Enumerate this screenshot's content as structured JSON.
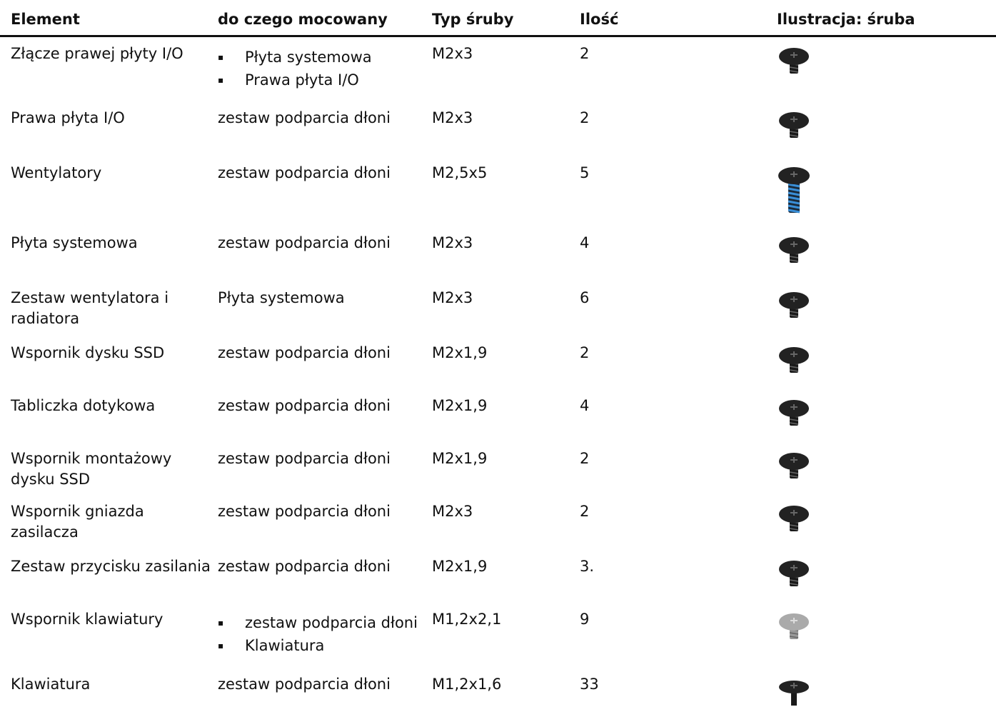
{
  "table": {
    "header": [
      "Element",
      "do czego mocowany",
      "Typ śruby",
      "Ilość",
      "Ilustracja: śruba"
    ],
    "rows": [
      [
        "Złącze prawej płyty I/O",
        [
          "Płyta systemowa",
          "Prawa płyta I/O"
        ],
        "M2x3",
        "2"
      ],
      [
        "Prawa płyta I/O",
        "zestaw podparcia dłoni",
        "M2x3",
        "2"
      ],
      [
        "Wentylatory",
        "zestaw podparcia dłoni",
        "M2,5x5",
        "5"
      ],
      [
        "Płyta systemowa",
        "zestaw podparcia dłoni",
        "M2x3",
        "4"
      ],
      [
        "Zestaw wentylatora i radiatora",
        "Płyta systemowa",
        "M2x3",
        "6"
      ],
      [
        "Wspornik dysku SSD",
        "zestaw podparcia dłoni",
        "M2x1,9",
        "2"
      ],
      [
        "Tabliczka dotykowa",
        "zestaw podparcia dłoni",
        "M2x1,9",
        "4"
      ],
      [
        "Wspornik montażowy dysku SSD",
        "zestaw podparcia dłoni",
        "M2x1,9",
        "2"
      ],
      [
        "Wspornik gniazda zasilacza",
        "zestaw podparcia dłoni",
        "M2x3",
        "2"
      ],
      [
        "Zestaw przycisku zasilania",
        "zestaw podparcia dłoni",
        "M2x1,9",
        "3."
      ],
      [
        "Wspornik klawiatury",
        [
          "zestaw podparcia dłoni",
          "Klawiatura"
        ],
        "M1,2x2,1",
        "9"
      ],
      [
        "Klawiatura",
        "zestaw podparcia dłoni",
        "M1,2x1,6",
        "33"
      ]
    ]
  }
}
